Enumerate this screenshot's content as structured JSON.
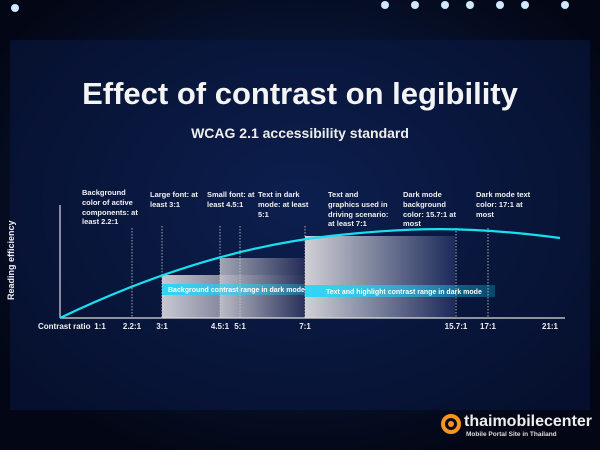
{
  "slide": {
    "title": "Effect of contrast on legibility",
    "subtitle": "WCAG 2.1 accessibility standard"
  },
  "chart_data": {
    "type": "line",
    "title": "Effect of contrast on legibility",
    "subtitle": "WCAG 2.1 accessibility standard",
    "xlabel": "Contrast ratio",
    "ylabel": "Reading efficiency",
    "x_ticks": [
      "1:1",
      "2.2:1",
      "3:1",
      "4.5:1",
      "5:1",
      "7:1",
      "15.7:1",
      "17:1",
      "21:1"
    ],
    "annotations": [
      {
        "at": "2.2:1",
        "text": "Background color of active components: at least 2.2:1"
      },
      {
        "at": "3:1",
        "text": "Large font: at least 3:1"
      },
      {
        "at": "4.5:1",
        "text": "Small font: at least 4.5:1"
      },
      {
        "at": "5:1",
        "text": "Text in dark mode: at least 5:1"
      },
      {
        "at": "7:1",
        "text": "Text and graphics used in driving scenario: at least 7:1"
      },
      {
        "at": "15.7:1",
        "text": "Dark mode background color: 15.7:1 at most"
      },
      {
        "at": "17:1",
        "text": "Dark mode text color: 17:1 at most"
      }
    ],
    "ranges": [
      {
        "label": "Background contrast range in dark mode",
        "from": "3:1",
        "to": "7:1"
      },
      {
        "label": "Text and highlight contrast range in dark mode",
        "from": "7:1",
        "to": "17:1"
      }
    ],
    "curve_color": "#19e0f0"
  },
  "watermark": {
    "brand": "thaimobilecenter",
    "tagline": "Mobile Portal Site in Thailand",
    "color": "#f7941d"
  }
}
